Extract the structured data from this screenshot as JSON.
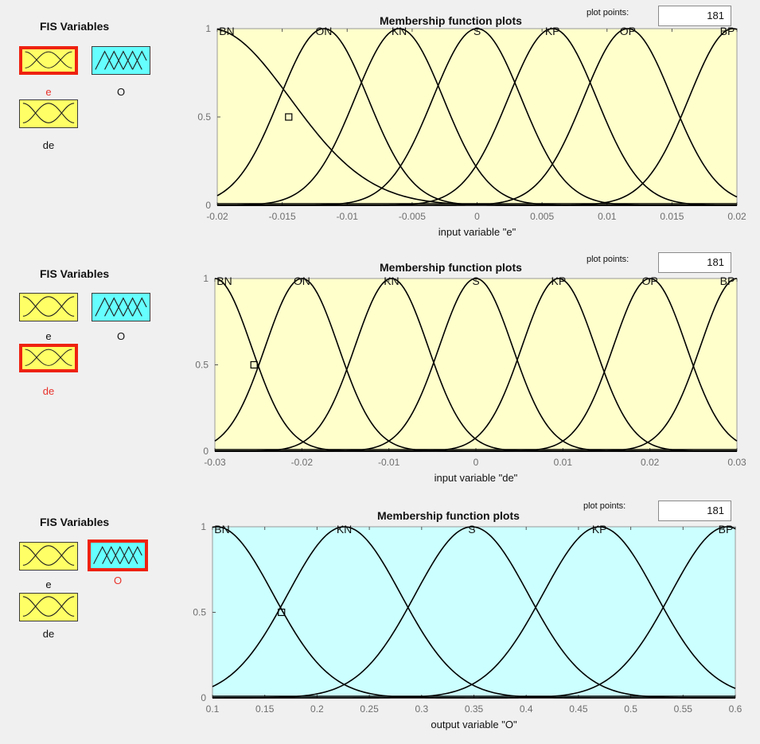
{
  "panels": [
    {
      "fis_title": "FIS Variables",
      "vars": [
        {
          "label": "e",
          "kind": "input",
          "selected": true
        },
        {
          "label": "O",
          "kind": "output",
          "selected": false
        },
        {
          "label": "de",
          "kind": "input",
          "selected": false
        }
      ],
      "mf_title": "Membership function plots",
      "plot_points_label": "plot points:",
      "plot_points_value": "181",
      "chart_data": {
        "type": "line",
        "xlabel": "input variable \"e\"",
        "xlim": [
          -0.02,
          0.02
        ],
        "ylim": [
          0,
          1
        ],
        "xticks": [
          "-0.02",
          "-0.015",
          "-0.01",
          "-0.005",
          "0",
          "0.005",
          "0.01",
          "0.015",
          "0.02"
        ],
        "yticks": [
          "0",
          "0.5",
          "1"
        ],
        "background": "#ffffcc",
        "sigma": 0.0034,
        "series": [
          {
            "name": "BN",
            "center": -0.0205
          },
          {
            "name": "ON",
            "center": -0.0118
          },
          {
            "name": "KN",
            "center": -0.006
          },
          {
            "name": "S",
            "center": 0.0
          },
          {
            "name": "KP",
            "center": 0.0058
          },
          {
            "name": "OP",
            "center": 0.0116
          },
          {
            "name": "BP",
            "center": 0.0197
          }
        ],
        "bn_sigma": 0.0061,
        "marker": {
          "x": -0.0145,
          "y": 0.5
        }
      }
    },
    {
      "fis_title": "FIS Variables",
      "vars": [
        {
          "label": "e",
          "kind": "input",
          "selected": false
        },
        {
          "label": "O",
          "kind": "output",
          "selected": false
        },
        {
          "label": "de",
          "kind": "input",
          "selected": true
        }
      ],
      "mf_title": "Membership function plots",
      "plot_points_label": "plot points:",
      "plot_points_value": "181",
      "chart_data": {
        "type": "line",
        "xlabel": "input variable \"de\"",
        "xlim": [
          -0.03,
          0.03
        ],
        "ylim": [
          0,
          1
        ],
        "xticks": [
          "-0.03",
          "-0.02",
          "-0.01",
          "0",
          "0.01",
          "0.02",
          "0.03"
        ],
        "yticks": [
          "0",
          "0.5",
          "1"
        ],
        "background": "#ffffcc",
        "sigma": 0.0042,
        "series": [
          {
            "name": "BN",
            "center": -0.03
          },
          {
            "name": "ON",
            "center": -0.02
          },
          {
            "name": "KN",
            "center": -0.0097
          },
          {
            "name": "S",
            "center": 0.0
          },
          {
            "name": "KP",
            "center": 0.0095
          },
          {
            "name": "OP",
            "center": 0.02
          },
          {
            "name": "BP",
            "center": 0.03
          }
        ],
        "bn_sigma": 0.0042,
        "marker": {
          "x": -0.0255,
          "y": 0.5
        }
      }
    },
    {
      "fis_title": "FIS Variables",
      "vars": [
        {
          "label": "e",
          "kind": "input",
          "selected": false
        },
        {
          "label": "O",
          "kind": "output",
          "selected": true
        },
        {
          "label": "de",
          "kind": "input",
          "selected": false
        }
      ],
      "mf_title": "Membership function plots",
      "plot_points_label": "plot points:",
      "plot_points_value": "181",
      "chart_data": {
        "type": "line",
        "xlabel": "output variable \"O\"",
        "xlim": [
          0.1,
          0.6
        ],
        "ylim": [
          0,
          1
        ],
        "xticks": [
          "0.1",
          "0.15",
          "0.2",
          "0.25",
          "0.3",
          "0.35",
          "0.4",
          "0.45",
          "0.5",
          "0.55",
          "0.6"
        ],
        "yticks": [
          "0",
          "0.5",
          "1"
        ],
        "background": "#ccffff",
        "sigma": 0.054,
        "series": [
          {
            "name": "BN",
            "center": 0.104
          },
          {
            "name": "KN",
            "center": 0.226
          },
          {
            "name": "S",
            "center": 0.348
          },
          {
            "name": "KP",
            "center": 0.47
          },
          {
            "name": "BP",
            "center": 0.592
          }
        ],
        "bn_sigma": 0.054,
        "marker": {
          "x": 0.166,
          "y": 0.5
        }
      }
    }
  ]
}
